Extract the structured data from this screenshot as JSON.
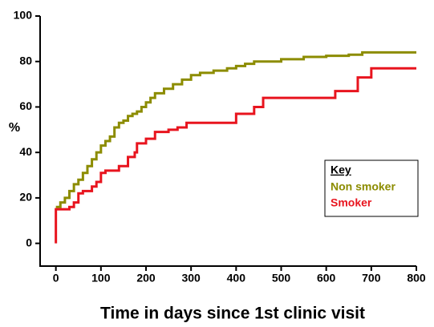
{
  "chart_data": {
    "type": "line",
    "drawstyle": "steps-post",
    "xlabel": "Time in days since 1st clinic visit",
    "ylabel": "%",
    "xlim": [
      -35,
      800
    ],
    "ylim": [
      -10,
      100
    ],
    "xticks": [
      0,
      100,
      200,
      300,
      400,
      500,
      600,
      700,
      800
    ],
    "yticks": [
      0,
      20,
      40,
      60,
      80,
      100
    ],
    "legend_title": "Key",
    "legend_loc": "center right",
    "series": [
      {
        "name": "Non smoker",
        "color": "#8c8c00",
        "x": [
          0,
          10,
          20,
          30,
          40,
          50,
          60,
          70,
          80,
          90,
          100,
          110,
          120,
          130,
          140,
          150,
          160,
          170,
          180,
          190,
          200,
          210,
          220,
          240,
          260,
          280,
          300,
          320,
          350,
          380,
          400,
          420,
          440,
          500,
          550,
          600,
          650,
          680,
          800
        ],
        "values": [
          16,
          18,
          20,
          23,
          26,
          28,
          31,
          34,
          37,
          40,
          43,
          45,
          47,
          51,
          53,
          54,
          56,
          57,
          58,
          60,
          62,
          64,
          66,
          68,
          70,
          72,
          74,
          75,
          76,
          77,
          78,
          79,
          80,
          81,
          82,
          82.5,
          83,
          84,
          84
        ]
      },
      {
        "name": "Smoker",
        "color": "#e8141e",
        "x": [
          0,
          0,
          30,
          40,
          50,
          60,
          80,
          90,
          100,
          110,
          140,
          160,
          175,
          180,
          200,
          220,
          250,
          270,
          290,
          400,
          440,
          460,
          600,
          620,
          660,
          670,
          700,
          800
        ],
        "values": [
          0,
          15,
          16,
          18,
          22,
          23,
          25,
          27,
          31,
          32,
          34,
          38,
          40,
          44,
          46,
          49,
          50,
          51,
          53,
          57,
          60,
          64,
          64,
          67,
          67,
          73,
          77,
          77
        ]
      }
    ]
  }
}
